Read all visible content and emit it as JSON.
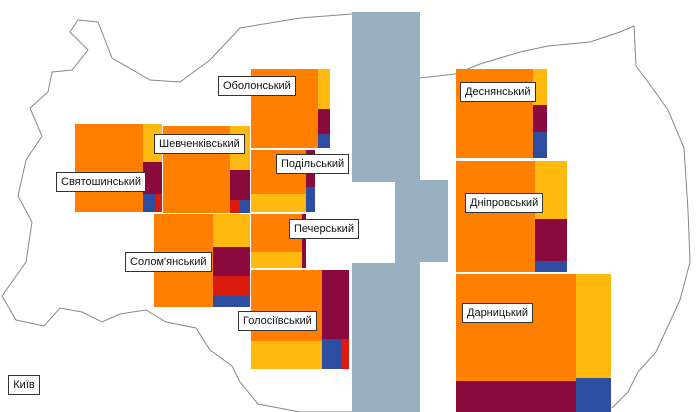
{
  "city": "Київ",
  "colors": {
    "orange": "#FF7F00",
    "yellow": "#FFB90F",
    "wine": "#8B0A3E",
    "red": "#D91A0D",
    "blue": "#2C4DA0",
    "river": "#98B0C0",
    "outline": "#888888",
    "label_border": "#333333"
  },
  "legend": [],
  "districts": [
    {
      "id": "obolonskyi",
      "label": "Оболонський"
    },
    {
      "id": "shevchenkivskyi",
      "label": "Шевченківський"
    },
    {
      "id": "sviatoshynskyi",
      "label": "Святошинський"
    },
    {
      "id": "podilskyi",
      "label": "Подільський"
    },
    {
      "id": "pecherskyi",
      "label": "Печерський"
    },
    {
      "id": "solomianskyi",
      "label": "Солом'янський"
    },
    {
      "id": "holosiivskyi",
      "label": "Голосіївський"
    },
    {
      "id": "desnianskyi",
      "label": "Деснянський"
    },
    {
      "id": "dniprovskyi",
      "label": "Дніпровський"
    },
    {
      "id": "darnytskyi",
      "label": "Дарницький"
    }
  ]
}
